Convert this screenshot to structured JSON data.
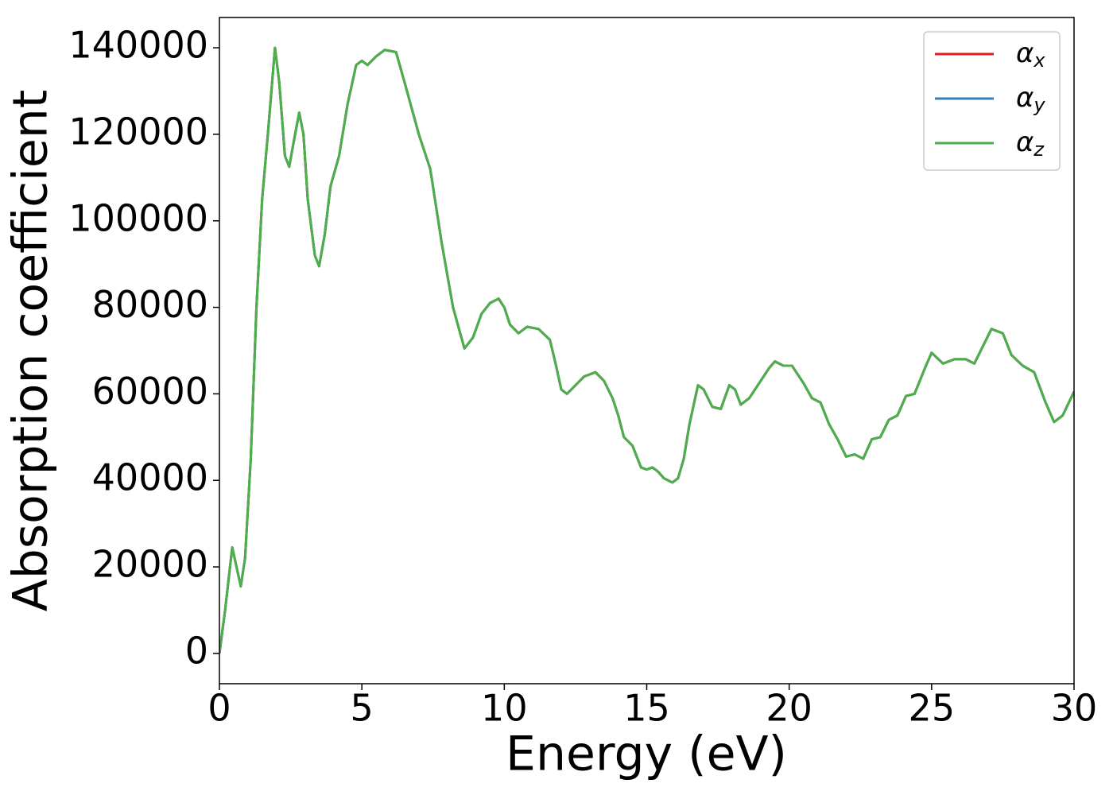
{
  "chart_data": {
    "type": "line",
    "xlabel": "Energy (eV)",
    "ylabel": "Absorption coefficient",
    "x": [
      0,
      0.2,
      0.45,
      0.6,
      0.75,
      0.9,
      1.1,
      1.3,
      1.5,
      1.7,
      1.95,
      2.1,
      2.3,
      2.45,
      2.6,
      2.8,
      2.95,
      3.1,
      3.35,
      3.5,
      3.7,
      3.9,
      4.2,
      4.5,
      4.8,
      5.0,
      5.2,
      5.5,
      5.8,
      6.2,
      6.5,
      7.0,
      7.4,
      7.8,
      8.2,
      8.6,
      8.9,
      9.2,
      9.5,
      9.8,
      10.0,
      10.2,
      10.5,
      10.8,
      11.2,
      11.6,
      11.8,
      12.0,
      12.2,
      12.5,
      12.8,
      13.2,
      13.5,
      13.8,
      14.0,
      14.2,
      14.5,
      14.8,
      15.0,
      15.2,
      15.4,
      15.6,
      15.9,
      16.1,
      16.3,
      16.5,
      16.8,
      17.0,
      17.3,
      17.6,
      17.9,
      18.1,
      18.3,
      18.6,
      19.0,
      19.3,
      19.5,
      19.8,
      20.1,
      20.5,
      20.8,
      21.1,
      21.4,
      21.7,
      22.0,
      22.3,
      22.6,
      22.9,
      23.2,
      23.5,
      23.8,
      24.1,
      24.4,
      24.8,
      25.0,
      25.4,
      25.8,
      26.2,
      26.5,
      26.8,
      27.1,
      27.5,
      27.8,
      28.2,
      28.6,
      29.0,
      29.3,
      29.6,
      30.0
    ],
    "series": [
      {
        "name": "αx",
        "color": "#e41a1c",
        "values": [
          0,
          10000,
          24500,
          20000,
          15500,
          22000,
          45000,
          80000,
          105000,
          120000,
          140000,
          132000,
          115000,
          112500,
          118000,
          125000,
          120000,
          105000,
          92000,
          89500,
          97000,
          108000,
          115000,
          127000,
          136000,
          137000,
          136000,
          138000,
          139500,
          139000,
          132000,
          120000,
          112000,
          95000,
          80000,
          70500,
          73000,
          78500,
          81000,
          82000,
          80000,
          76000,
          74000,
          75500,
          75000,
          72500,
          67000,
          61000,
          60000,
          62000,
          64000,
          65000,
          63000,
          59000,
          55000,
          50000,
          48000,
          43000,
          42500,
          43000,
          42000,
          40500,
          39500,
          40500,
          45000,
          53000,
          62000,
          61000,
          57000,
          56500,
          62000,
          61000,
          57500,
          59000,
          63000,
          66000,
          67500,
          66500,
          66500,
          62500,
          59000,
          58000,
          53000,
          49500,
          45500,
          46000,
          45000,
          49500,
          50000,
          54000,
          55000,
          59500,
          60000,
          66500,
          69500,
          67000,
          68000,
          68000,
          67000,
          71000,
          75000,
          74000,
          69000,
          66500,
          65000,
          58000,
          53500,
          55000,
          60500
        ]
      },
      {
        "name": "αy",
        "color": "#377eb8",
        "values": [
          0,
          10000,
          24500,
          20000,
          15500,
          22000,
          45000,
          80000,
          105000,
          120000,
          140000,
          132000,
          115000,
          112500,
          118000,
          125000,
          120000,
          105000,
          92000,
          89500,
          97000,
          108000,
          115000,
          127000,
          136000,
          137000,
          136000,
          138000,
          139500,
          139000,
          132000,
          120000,
          112000,
          95000,
          80000,
          70500,
          73000,
          78500,
          81000,
          82000,
          80000,
          76000,
          74000,
          75500,
          75000,
          72500,
          67000,
          61000,
          60000,
          62000,
          64000,
          65000,
          63000,
          59000,
          55000,
          50000,
          48000,
          43000,
          42500,
          43000,
          42000,
          40500,
          39500,
          40500,
          45000,
          53000,
          62000,
          61000,
          57000,
          56500,
          62000,
          61000,
          57500,
          59000,
          63000,
          66000,
          67500,
          66500,
          66500,
          62500,
          59000,
          58000,
          53000,
          49500,
          45500,
          46000,
          45000,
          49500,
          50000,
          54000,
          55000,
          59500,
          60000,
          66500,
          69500,
          67000,
          68000,
          68000,
          67000,
          71000,
          75000,
          74000,
          69000,
          66500,
          65000,
          58000,
          53500,
          55000,
          60500
        ]
      },
      {
        "name": "αz",
        "color": "#4daf4a",
        "values": [
          0,
          10000,
          24500,
          20000,
          15500,
          22000,
          45000,
          80000,
          105000,
          120000,
          140000,
          132000,
          115000,
          112500,
          118000,
          125000,
          120000,
          105000,
          92000,
          89500,
          97000,
          108000,
          115000,
          127000,
          136000,
          137000,
          136000,
          138000,
          139500,
          139000,
          132000,
          120000,
          112000,
          95000,
          80000,
          70500,
          73000,
          78500,
          81000,
          82000,
          80000,
          76000,
          74000,
          75500,
          75000,
          72500,
          67000,
          61000,
          60000,
          62000,
          64000,
          65000,
          63000,
          59000,
          55000,
          50000,
          48000,
          43000,
          42500,
          43000,
          42000,
          40500,
          39500,
          40500,
          45000,
          53000,
          62000,
          61000,
          57000,
          56500,
          62000,
          61000,
          57500,
          59000,
          63000,
          66000,
          67500,
          66500,
          66500,
          62500,
          59000,
          58000,
          53000,
          49500,
          45500,
          46000,
          45000,
          49500,
          50000,
          54000,
          55000,
          59500,
          60000,
          66500,
          69500,
          67000,
          68000,
          68000,
          67000,
          71000,
          75000,
          74000,
          69000,
          66500,
          65000,
          58000,
          53500,
          55000,
          60500
        ]
      }
    ],
    "xlim": [
      0,
      30
    ],
    "xticks": [
      0,
      5,
      10,
      15,
      20,
      25,
      30
    ],
    "ylim": [
      -7000,
      147000
    ],
    "yticks": [
      0,
      20000,
      40000,
      60000,
      80000,
      100000,
      120000,
      140000
    ],
    "grid": false,
    "legend": "upper right"
  }
}
